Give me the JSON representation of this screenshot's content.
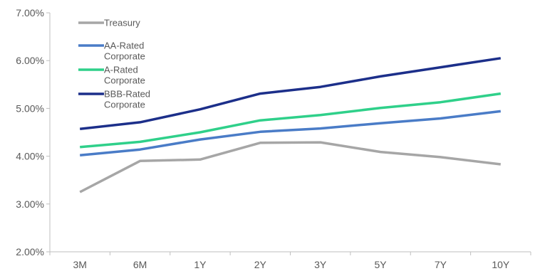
{
  "chart_data": {
    "type": "line",
    "title": "",
    "xlabel": "",
    "ylabel": "",
    "categories": [
      "3M",
      "6M",
      "1Y",
      "2Y",
      "3Y",
      "5Y",
      "7Y",
      "10Y"
    ],
    "ylim": [
      0.02,
      0.07
    ],
    "yticks": [
      "2.00%",
      "3.00%",
      "4.00%",
      "5.00%",
      "6.00%",
      "7.00%"
    ],
    "grid": false,
    "legend_position": "top-left",
    "series": [
      {
        "name": "Treasury",
        "color": "#a6a6a6",
        "values": [
          0.0325,
          0.039,
          0.0393,
          0.0428,
          0.0429,
          0.0409,
          0.0398,
          0.0383
        ]
      },
      {
        "name": "AA-Rated Corporate",
        "color": "#4a7cc7",
        "values": [
          0.0402,
          0.0414,
          0.0435,
          0.0451,
          0.0458,
          0.0469,
          0.0479,
          0.0494
        ]
      },
      {
        "name": "A-Rated Corporate",
        "color": "#2fd08a",
        "values": [
          0.0419,
          0.043,
          0.045,
          0.0475,
          0.0486,
          0.0501,
          0.0513,
          0.0531
        ]
      },
      {
        "name": "BBB-Rated Corporate",
        "color": "#1c2f8a",
        "values": [
          0.0457,
          0.0471,
          0.0498,
          0.0531,
          0.0545,
          0.0567,
          0.0586,
          0.0605
        ]
      }
    ]
  }
}
